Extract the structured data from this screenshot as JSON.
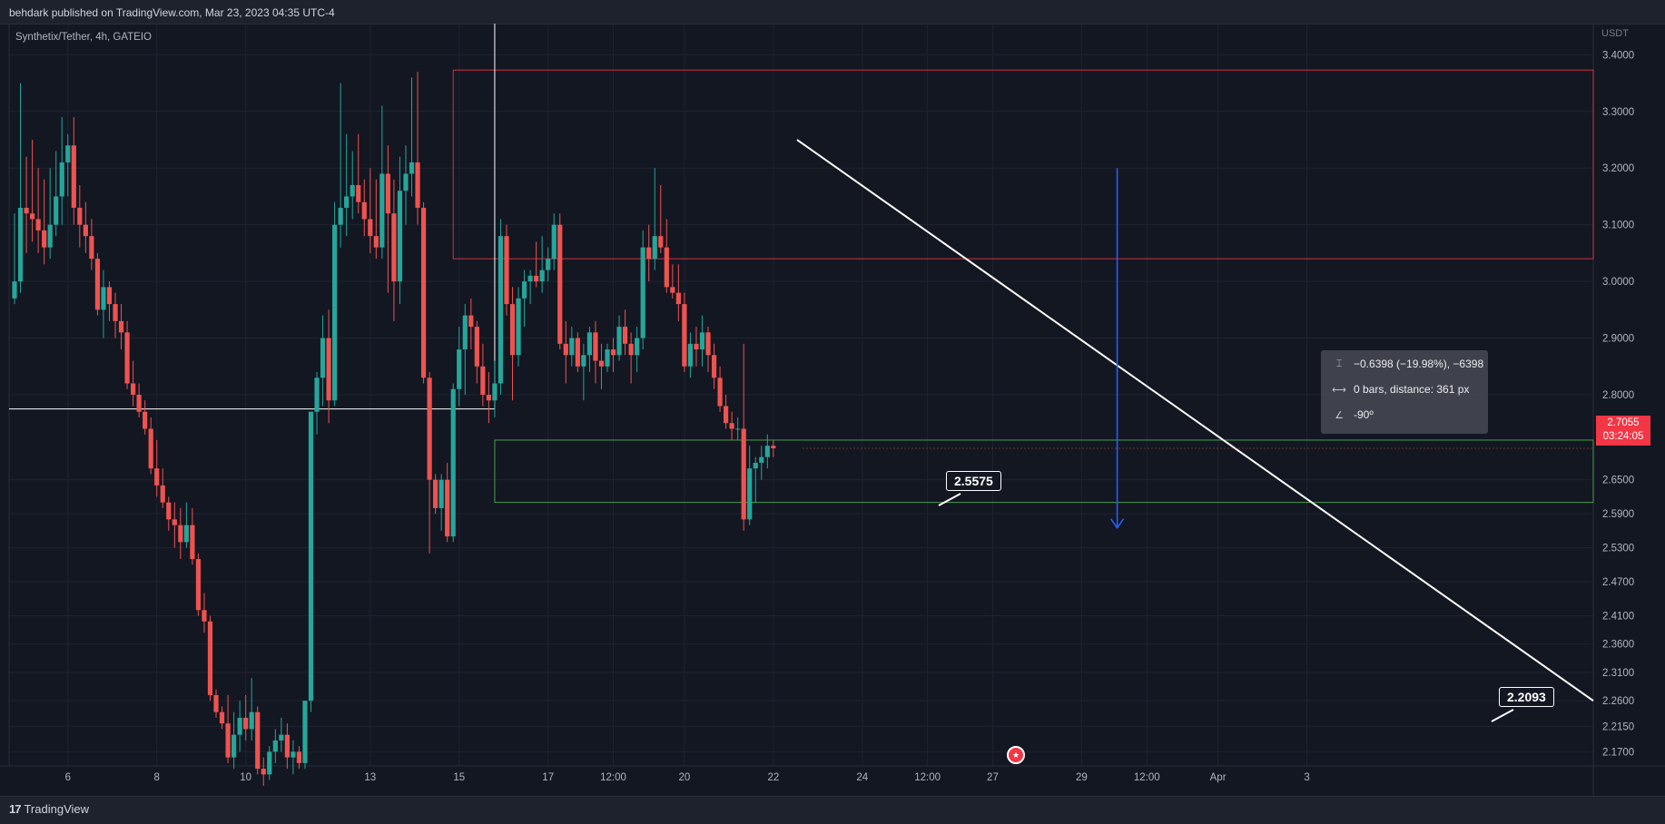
{
  "header": {
    "text": "behdark published on TradingView.com, Mar 23, 2023 04:35 UTC-4"
  },
  "footer": {
    "logo_text": "TradingView",
    "logo_mark": "17"
  },
  "symbol_legend": "Synthetix/Tether, 4h, GATEIO",
  "currency": "USDT",
  "last_price": {
    "value": "2.7055",
    "countdown": "03:24:05",
    "color": "#f23645"
  },
  "measure_tooltip": {
    "line1": "−0.6398 (−19.98%), −6398",
    "line2": "0 bars, distance: 361 px",
    "line3": "-90º",
    "icons": [
      "price-range-icon",
      "bar-range-icon",
      "angle-icon"
    ]
  },
  "callouts": {
    "c1": "2.5575",
    "c2": "2.2093"
  },
  "colors": {
    "up": "#26a69a",
    "down": "#ef5350",
    "background": "#131722",
    "grid": "#1f2330",
    "zone_red": "#f23645",
    "zone_green": "#4caf50",
    "arrow": "#2962ff",
    "trendline": "#ffffff"
  },
  "chart_data": {
    "type": "candlestick",
    "title": "Synthetix/Tether, 4h, GATEIO",
    "ylim": [
      2.145,
      3.455
    ],
    "y_ticks": [
      "3.4000",
      "3.3000",
      "3.2000",
      "3.1000",
      "3.0000",
      "2.9000",
      "2.8000",
      "2.6500",
      "2.5900",
      "2.5300",
      "2.4700",
      "2.4100",
      "2.3600",
      "2.3100",
      "2.2600",
      "2.2150",
      "2.1700"
    ],
    "x_ticks": [
      "6",
      "8",
      "10",
      "13",
      "15",
      "17",
      "12:00",
      "20",
      "22",
      "24",
      "12:00",
      "27",
      "29",
      "12:00",
      "Apr",
      "3"
    ],
    "x_tick_bars": [
      9,
      24,
      39,
      60,
      75,
      90,
      101,
      113,
      128,
      143,
      154,
      165,
      180,
      191,
      203,
      218
    ],
    "candles": [
      {
        "o": 2.97,
        "h": 3.12,
        "l": 2.96,
        "c": 3.0
      },
      {
        "o": 3.0,
        "h": 3.35,
        "l": 2.98,
        "c": 3.13
      },
      {
        "o": 3.13,
        "h": 3.22,
        "l": 3.05,
        "c": 3.12
      },
      {
        "o": 3.12,
        "h": 3.25,
        "l": 3.07,
        "c": 3.11
      },
      {
        "o": 3.11,
        "h": 3.2,
        "l": 3.05,
        "c": 3.09
      },
      {
        "o": 3.09,
        "h": 3.18,
        "l": 3.03,
        "c": 3.06
      },
      {
        "o": 3.06,
        "h": 3.2,
        "l": 3.04,
        "c": 3.1
      },
      {
        "o": 3.1,
        "h": 3.23,
        "l": 3.08,
        "c": 3.15
      },
      {
        "o": 3.15,
        "h": 3.29,
        "l": 3.1,
        "c": 3.21
      },
      {
        "o": 3.21,
        "h": 3.26,
        "l": 3.15,
        "c": 3.24
      },
      {
        "o": 3.24,
        "h": 3.29,
        "l": 3.1,
        "c": 3.13
      },
      {
        "o": 3.13,
        "h": 3.17,
        "l": 3.06,
        "c": 3.1
      },
      {
        "o": 3.1,
        "h": 3.14,
        "l": 3.05,
        "c": 3.08
      },
      {
        "o": 3.08,
        "h": 3.11,
        "l": 3.02,
        "c": 3.04
      },
      {
        "o": 3.04,
        "h": 3.05,
        "l": 2.94,
        "c": 2.95
      },
      {
        "o": 2.95,
        "h": 3.02,
        "l": 2.9,
        "c": 2.99
      },
      {
        "o": 2.99,
        "h": 3.0,
        "l": 2.93,
        "c": 2.96
      },
      {
        "o": 2.96,
        "h": 2.98,
        "l": 2.9,
        "c": 2.93
      },
      {
        "o": 2.93,
        "h": 2.96,
        "l": 2.88,
        "c": 2.91
      },
      {
        "o": 2.91,
        "h": 2.93,
        "l": 2.81,
        "c": 2.82
      },
      {
        "o": 2.82,
        "h": 2.86,
        "l": 2.78,
        "c": 2.8
      },
      {
        "o": 2.8,
        "h": 2.82,
        "l": 2.76,
        "c": 2.77
      },
      {
        "o": 2.77,
        "h": 2.79,
        "l": 2.73,
        "c": 2.74
      },
      {
        "o": 2.74,
        "h": 2.76,
        "l": 2.66,
        "c": 2.67
      },
      {
        "o": 2.67,
        "h": 2.72,
        "l": 2.62,
        "c": 2.64
      },
      {
        "o": 2.64,
        "h": 2.67,
        "l": 2.6,
        "c": 2.61
      },
      {
        "o": 2.61,
        "h": 2.62,
        "l": 2.56,
        "c": 2.58
      },
      {
        "o": 2.58,
        "h": 2.61,
        "l": 2.53,
        "c": 2.57
      },
      {
        "o": 2.57,
        "h": 2.6,
        "l": 2.51,
        "c": 2.54
      },
      {
        "o": 2.54,
        "h": 2.61,
        "l": 2.53,
        "c": 2.57
      },
      {
        "o": 2.57,
        "h": 2.6,
        "l": 2.5,
        "c": 2.51
      },
      {
        "o": 2.51,
        "h": 2.52,
        "l": 2.41,
        "c": 2.42
      },
      {
        "o": 2.42,
        "h": 2.45,
        "l": 2.38,
        "c": 2.4
      },
      {
        "o": 2.4,
        "h": 2.41,
        "l": 2.26,
        "c": 2.27
      },
      {
        "o": 2.27,
        "h": 2.28,
        "l": 2.23,
        "c": 2.24
      },
      {
        "o": 2.24,
        "h": 2.25,
        "l": 2.21,
        "c": 2.22
      },
      {
        "o": 2.22,
        "h": 2.27,
        "l": 2.15,
        "c": 2.16
      },
      {
        "o": 2.16,
        "h": 2.24,
        "l": 2.14,
        "c": 2.2
      },
      {
        "o": 2.2,
        "h": 2.26,
        "l": 2.17,
        "c": 2.23
      },
      {
        "o": 2.23,
        "h": 2.27,
        "l": 2.19,
        "c": 2.21
      },
      {
        "o": 2.21,
        "h": 2.3,
        "l": 2.19,
        "c": 2.24
      },
      {
        "o": 2.24,
        "h": 2.25,
        "l": 2.13,
        "c": 2.14
      },
      {
        "o": 2.14,
        "h": 2.16,
        "l": 2.11,
        "c": 2.13
      },
      {
        "o": 2.13,
        "h": 2.18,
        "l": 2.12,
        "c": 2.17
      },
      {
        "o": 2.17,
        "h": 2.21,
        "l": 2.15,
        "c": 2.19
      },
      {
        "o": 2.19,
        "h": 2.23,
        "l": 2.17,
        "c": 2.2
      },
      {
        "o": 2.2,
        "h": 2.22,
        "l": 2.14,
        "c": 2.16
      },
      {
        "o": 2.16,
        "h": 2.19,
        "l": 2.13,
        "c": 2.17
      },
      {
        "o": 2.17,
        "h": 2.18,
        "l": 2.14,
        "c": 2.15
      },
      {
        "o": 2.15,
        "h": 2.26,
        "l": 2.14,
        "c": 2.26
      },
      {
        "o": 2.26,
        "h": 2.77,
        "l": 2.24,
        "c": 2.77
      },
      {
        "o": 2.77,
        "h": 2.84,
        "l": 2.73,
        "c": 2.83
      },
      {
        "o": 2.83,
        "h": 2.94,
        "l": 2.78,
        "c": 2.9
      },
      {
        "o": 2.9,
        "h": 2.95,
        "l": 2.75,
        "c": 2.79
      },
      {
        "o": 2.79,
        "h": 3.14,
        "l": 2.78,
        "c": 3.1
      },
      {
        "o": 3.1,
        "h": 3.35,
        "l": 3.06,
        "c": 3.13
      },
      {
        "o": 3.13,
        "h": 3.26,
        "l": 3.08,
        "c": 3.15
      },
      {
        "o": 3.15,
        "h": 3.23,
        "l": 3.11,
        "c": 3.17
      },
      {
        "o": 3.17,
        "h": 3.26,
        "l": 3.12,
        "c": 3.14
      },
      {
        "o": 3.14,
        "h": 3.18,
        "l": 3.08,
        "c": 3.11
      },
      {
        "o": 3.11,
        "h": 3.2,
        "l": 3.05,
        "c": 3.08
      },
      {
        "o": 3.08,
        "h": 3.18,
        "l": 3.04,
        "c": 3.06
      },
      {
        "o": 3.06,
        "h": 3.31,
        "l": 3.04,
        "c": 3.19
      },
      {
        "o": 3.19,
        "h": 3.24,
        "l": 2.98,
        "c": 3.12
      },
      {
        "o": 3.12,
        "h": 3.18,
        "l": 2.93,
        "c": 3.0
      },
      {
        "o": 3.0,
        "h": 3.22,
        "l": 2.96,
        "c": 3.16
      },
      {
        "o": 3.16,
        "h": 3.24,
        "l": 3.1,
        "c": 3.19
      },
      {
        "o": 3.19,
        "h": 3.36,
        "l": 3.15,
        "c": 3.21
      },
      {
        "o": 3.21,
        "h": 3.37,
        "l": 3.1,
        "c": 3.13
      },
      {
        "o": 3.13,
        "h": 3.14,
        "l": 2.82,
        "c": 2.83
      },
      {
        "o": 2.83,
        "h": 2.84,
        "l": 2.52,
        "c": 2.65
      },
      {
        "o": 2.65,
        "h": 2.66,
        "l": 2.59,
        "c": 2.6
      },
      {
        "o": 2.6,
        "h": 2.66,
        "l": 2.56,
        "c": 2.65
      },
      {
        "o": 2.65,
        "h": 2.68,
        "l": 2.54,
        "c": 2.55
      },
      {
        "o": 2.55,
        "h": 2.82,
        "l": 2.54,
        "c": 2.81
      },
      {
        "o": 2.81,
        "h": 2.92,
        "l": 2.78,
        "c": 2.88
      },
      {
        "o": 2.88,
        "h": 2.96,
        "l": 2.8,
        "c": 2.94
      },
      {
        "o": 2.94,
        "h": 2.97,
        "l": 2.88,
        "c": 2.92
      },
      {
        "o": 2.92,
        "h": 2.93,
        "l": 2.82,
        "c": 2.85
      },
      {
        "o": 2.85,
        "h": 2.89,
        "l": 2.78,
        "c": 2.8
      },
      {
        "o": 2.8,
        "h": 2.84,
        "l": 2.75,
        "c": 2.79
      },
      {
        "o": 2.79,
        "h": 2.86,
        "l": 2.76,
        "c": 2.82
      },
      {
        "o": 2.82,
        "h": 3.11,
        "l": 2.8,
        "c": 3.08
      },
      {
        "o": 3.08,
        "h": 3.1,
        "l": 2.94,
        "c": 2.96
      },
      {
        "o": 2.96,
        "h": 2.99,
        "l": 2.79,
        "c": 2.87
      },
      {
        "o": 2.87,
        "h": 2.99,
        "l": 2.85,
        "c": 2.97
      },
      {
        "o": 2.97,
        "h": 3.02,
        "l": 2.92,
        "c": 3.0
      },
      {
        "o": 3.0,
        "h": 3.02,
        "l": 2.96,
        "c": 3.01
      },
      {
        "o": 3.01,
        "h": 3.07,
        "l": 2.99,
        "c": 3.0
      },
      {
        "o": 3.0,
        "h": 3.08,
        "l": 2.98,
        "c": 3.02
      },
      {
        "o": 3.02,
        "h": 3.06,
        "l": 3.0,
        "c": 3.04
      },
      {
        "o": 3.04,
        "h": 3.12,
        "l": 3.02,
        "c": 3.1
      },
      {
        "o": 3.1,
        "h": 3.12,
        "l": 2.88,
        "c": 2.89
      },
      {
        "o": 2.89,
        "h": 2.93,
        "l": 2.82,
        "c": 2.87
      },
      {
        "o": 2.87,
        "h": 2.92,
        "l": 2.85,
        "c": 2.9
      },
      {
        "o": 2.9,
        "h": 2.91,
        "l": 2.84,
        "c": 2.85
      },
      {
        "o": 2.85,
        "h": 2.89,
        "l": 2.79,
        "c": 2.87
      },
      {
        "o": 2.87,
        "h": 2.92,
        "l": 2.84,
        "c": 2.91
      },
      {
        "o": 2.91,
        "h": 2.93,
        "l": 2.82,
        "c": 2.86
      },
      {
        "o": 2.86,
        "h": 2.89,
        "l": 2.81,
        "c": 2.85
      },
      {
        "o": 2.85,
        "h": 2.89,
        "l": 2.84,
        "c": 2.88
      },
      {
        "o": 2.88,
        "h": 2.9,
        "l": 2.84,
        "c": 2.87
      },
      {
        "o": 2.87,
        "h": 2.94,
        "l": 2.86,
        "c": 2.92
      },
      {
        "o": 2.92,
        "h": 2.95,
        "l": 2.87,
        "c": 2.89
      },
      {
        "o": 2.89,
        "h": 2.91,
        "l": 2.82,
        "c": 2.87
      },
      {
        "o": 2.87,
        "h": 2.92,
        "l": 2.84,
        "c": 2.9
      },
      {
        "o": 2.9,
        "h": 3.09,
        "l": 2.88,
        "c": 3.06
      },
      {
        "o": 3.06,
        "h": 3.1,
        "l": 3.0,
        "c": 3.04
      },
      {
        "o": 3.04,
        "h": 3.2,
        "l": 3.02,
        "c": 3.08
      },
      {
        "o": 3.08,
        "h": 3.17,
        "l": 3.05,
        "c": 3.06
      },
      {
        "o": 3.06,
        "h": 3.11,
        "l": 2.98,
        "c": 2.99
      },
      {
        "o": 2.99,
        "h": 3.03,
        "l": 2.97,
        "c": 2.98
      },
      {
        "o": 2.98,
        "h": 3.03,
        "l": 2.93,
        "c": 2.96
      },
      {
        "o": 2.96,
        "h": 2.98,
        "l": 2.84,
        "c": 2.85
      },
      {
        "o": 2.85,
        "h": 2.91,
        "l": 2.83,
        "c": 2.89
      },
      {
        "o": 2.89,
        "h": 2.92,
        "l": 2.85,
        "c": 2.88
      },
      {
        "o": 2.88,
        "h": 2.94,
        "l": 2.85,
        "c": 2.91
      },
      {
        "o": 2.91,
        "h": 2.92,
        "l": 2.84,
        "c": 2.87
      },
      {
        "o": 2.87,
        "h": 2.89,
        "l": 2.81,
        "c": 2.83
      },
      {
        "o": 2.83,
        "h": 2.85,
        "l": 2.77,
        "c": 2.78
      },
      {
        "o": 2.78,
        "h": 2.8,
        "l": 2.74,
        "c": 2.75
      },
      {
        "o": 2.75,
        "h": 2.77,
        "l": 2.72,
        "c": 2.74
      },
      {
        "o": 2.74,
        "h": 2.76,
        "l": 2.72,
        "c": 2.74
      },
      {
        "o": 2.74,
        "h": 2.89,
        "l": 2.56,
        "c": 2.58
      },
      {
        "o": 2.58,
        "h": 2.71,
        "l": 2.57,
        "c": 2.67
      },
      {
        "o": 2.67,
        "h": 2.69,
        "l": 2.61,
        "c": 2.68
      },
      {
        "o": 2.68,
        "h": 2.71,
        "l": 2.65,
        "c": 2.69
      },
      {
        "o": 2.69,
        "h": 2.73,
        "l": 2.67,
        "c": 2.71
      },
      {
        "o": 2.71,
        "h": 2.72,
        "l": 2.69,
        "c": 2.7055
      }
    ]
  }
}
